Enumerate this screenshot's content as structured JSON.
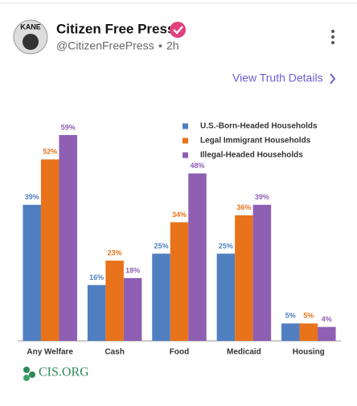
{
  "header": {
    "avatar_text": "KANE",
    "name": "Citizen Free Press",
    "handle": "@CitizenFreePress",
    "time": "2h"
  },
  "link": "View Truth Details",
  "source": "CIS.ORG",
  "chart_data": {
    "type": "bar",
    "categories": [
      "Any Welfare",
      "Cash",
      "Food",
      "Medicaid",
      "Housing"
    ],
    "series": [
      {
        "name": "U.S.-Born-Headed Households",
        "color": "#4f7fc0",
        "values": [
          39,
          16,
          25,
          25,
          5
        ],
        "value_labels": [
          "39%",
          "16%",
          "25%",
          "25%",
          "5%"
        ]
      },
      {
        "name": "Legal Immigrant Households",
        "color": "#e8731a",
        "values": [
          52,
          23,
          34,
          36,
          5
        ],
        "value_labels": [
          "52%",
          "23%",
          "34%",
          "36%",
          "5%"
        ]
      },
      {
        "name": "Illegal-Headed Households",
        "color": "#8e5fb3",
        "values": [
          59,
          18,
          48,
          39,
          4
        ],
        "value_labels": [
          "59%",
          "18%",
          "48%",
          "39%",
          "4%"
        ]
      }
    ],
    "legend": "top-right"
  }
}
